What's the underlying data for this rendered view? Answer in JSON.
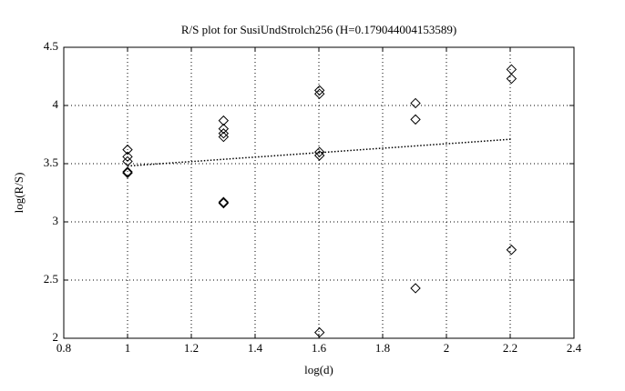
{
  "chart_data": {
    "type": "scatter",
    "title": "R/S plot for SusiUndStrolch256 (H=0.179044004153589)",
    "x_label": "log(d)",
    "y_label": "log(R/S)",
    "series": [
      {
        "type": "scatter",
        "color": "#000000",
        "x": [
          1,
          1,
          1,
          1,
          1,
          1.301,
          1.301,
          1.301,
          1.301,
          1.301,
          1.301,
          1.602,
          1.602,
          1.602,
          1.602,
          1.602,
          1.903,
          1.903,
          1.903,
          2.204,
          2.204,
          2.204
        ],
        "values": [
          3.62,
          3.56,
          3.52,
          3.43,
          3.42,
          3.87,
          3.8,
          3.76,
          3.73,
          3.17,
          3.16,
          4.13,
          4.1,
          3.6,
          3.57,
          2.05,
          4.02,
          3.88,
          2.43,
          4.31,
          4.23,
          2.76
        ]
      },
      {
        "type": "line",
        "color": "#000000",
        "x": [
          1,
          2.204
        ],
        "values": [
          3.48,
          3.71
        ]
      }
    ],
    "xlim": [
      0.8,
      2.4
    ],
    "xticks": [
      0.8,
      1,
      1.2,
      1.4,
      1.6,
      1.8,
      2,
      2.2,
      2.4
    ],
    "ylim": [
      2,
      4.5
    ],
    "yticks": [
      2,
      2.5,
      3,
      3.5,
      4,
      4.5
    ],
    "grid": true
  }
}
